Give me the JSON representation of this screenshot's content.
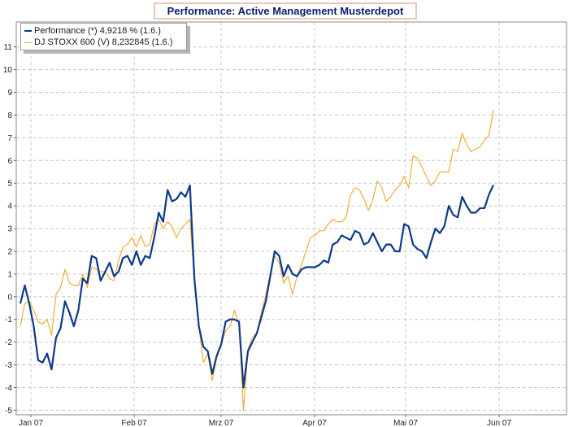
{
  "chart_data": {
    "type": "line",
    "title": "Performance: Active Management Musterdepot",
    "x_tick_labels": [
      "Jan 07",
      "Feb 07",
      "Mrz 07",
      "Apr 07",
      "Mai 07",
      "Jun 07"
    ],
    "y_ticks": [
      -5,
      -4,
      -3,
      -2,
      -1,
      0,
      1,
      2,
      3,
      4,
      5,
      6,
      7,
      8,
      9,
      10,
      11
    ],
    "ylim": [
      -5.2,
      12.1
    ],
    "grid": true,
    "legend_position": "top-left",
    "series": [
      {
        "name": "Performance (*) 4,9218 % (1.6.)",
        "color": "#0b3a8c",
        "values": [
          -0.3,
          0.5,
          -0.3,
          -1.3,
          -2.8,
          -2.9,
          -2.5,
          -3.2,
          -1.8,
          -1.4,
          -0.2,
          -0.7,
          -1.3,
          -0.6,
          0.8,
          0.6,
          1.8,
          1.7,
          0.7,
          1.1,
          1.5,
          0.9,
          1.1,
          1.7,
          1.8,
          1.4,
          2.0,
          1.4,
          1.8,
          1.7,
          2.6,
          3.7,
          3.3,
          4.7,
          4.2,
          4.3,
          4.6,
          4.4,
          4.9,
          0.8,
          -1.3,
          -2.2,
          -2.4,
          -3.4,
          -2.6,
          -2.1,
          -1.1,
          -1.0,
          -1.0,
          -1.1,
          -4.0,
          -2.4,
          -2.0,
          -1.6,
          -0.9,
          -0.2,
          0.9,
          2.0,
          1.8,
          0.9,
          1.4,
          1.0,
          0.9,
          1.2,
          1.3,
          1.3,
          1.3,
          1.4,
          1.6,
          1.5,
          2.3,
          2.4,
          2.7,
          2.6,
          2.5,
          2.9,
          2.8,
          2.3,
          2.4,
          2.8,
          2.4,
          2.0,
          2.3,
          2.3,
          2.0,
          2.0,
          3.2,
          3.1,
          2.3,
          2.1,
          2.0,
          1.7,
          2.4,
          3.0,
          2.8,
          3.1,
          4.0,
          3.6,
          3.5,
          4.4,
          4.0,
          3.7,
          3.7,
          3.9,
          3.9,
          4.5,
          4.92
        ]
      },
      {
        "name": "DJ STOXX 600 (V) 8,232845 (1.6.)",
        "color": "#f0a72a",
        "values": [
          -1.3,
          -0.3,
          -0.2,
          -0.6,
          -1.1,
          -1.2,
          -1.0,
          -1.7,
          0.1,
          0.4,
          1.2,
          0.6,
          0.5,
          0.5,
          1.0,
          0.4,
          1.3,
          1.2,
          1.1,
          1.1,
          0.8,
          0.7,
          1.6,
          2.2,
          2.3,
          2.6,
          2.2,
          2.7,
          2.2,
          2.3,
          3.2,
          3.4,
          3.0,
          3.3,
          3.1,
          2.6,
          3.0,
          3.2,
          3.4,
          0.8,
          -1.3,
          -2.9,
          -2.5,
          -3.7,
          -2.7,
          -2.1,
          -1.5,
          -1.3,
          -0.6,
          -1.2,
          -5.0,
          -2.3,
          -1.8,
          -1.6,
          -0.7,
          0.1,
          1.0,
          1.8,
          1.5,
          0.6,
          0.9,
          0.1,
          0.9,
          1.4,
          2.0,
          2.6,
          2.7,
          2.9,
          2.9,
          3.2,
          3.4,
          3.3,
          3.3,
          3.5,
          4.5,
          4.8,
          4.7,
          4.3,
          3.8,
          4.3,
          5.1,
          4.8,
          4.2,
          4.4,
          4.7,
          4.9,
          5.3,
          4.8,
          6.2,
          6.1,
          5.7,
          5.3,
          4.9,
          5.1,
          5.5,
          5.5,
          5.5,
          6.5,
          6.4,
          7.2,
          6.7,
          6.4,
          6.5,
          6.6,
          6.9,
          7.1,
          8.23
        ]
      }
    ]
  }
}
